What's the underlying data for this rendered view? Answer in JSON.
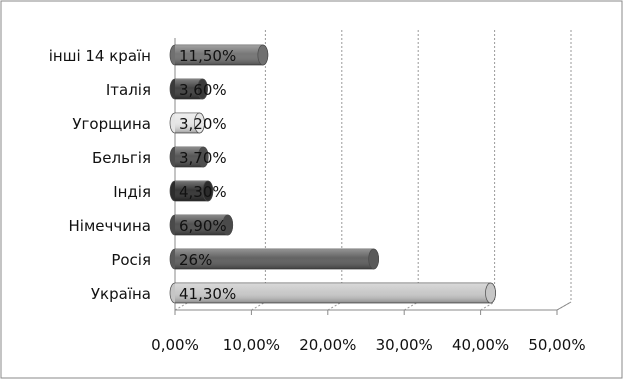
{
  "chart_data": {
    "type": "bar",
    "orientation": "horizontal",
    "categories": [
      "інші 14 країн",
      "Італія",
      "Угорщина",
      "Бельгія",
      "Індія",
      "Німеччина",
      "Росія",
      "Україна"
    ],
    "values": [
      11.5,
      3.6,
      3.2,
      3.7,
      4.3,
      6.9,
      26,
      41.3
    ],
    "data_labels": [
      "11,50%",
      "3,60%",
      "3,20%",
      "3,70%",
      "4,30%",
      "6,90%",
      "26%",
      "41,30%"
    ],
    "bar_colors": [
      "#707070",
      "#3a3a3a",
      "#e6e6e6",
      "#4e4e4e",
      "#2c2c2c",
      "#4a4a4a",
      "#5a5a5a",
      "#c6c6c6"
    ],
    "xlim": [
      0,
      50
    ],
    "x_ticks": [
      0,
      10,
      20,
      30,
      40,
      50
    ],
    "x_tick_labels": [
      "0,00%",
      "10,00%",
      "20,00%",
      "30,00%",
      "40,00%",
      "50,00%"
    ],
    "grid": "vertical-dashed",
    "legend": "none"
  }
}
